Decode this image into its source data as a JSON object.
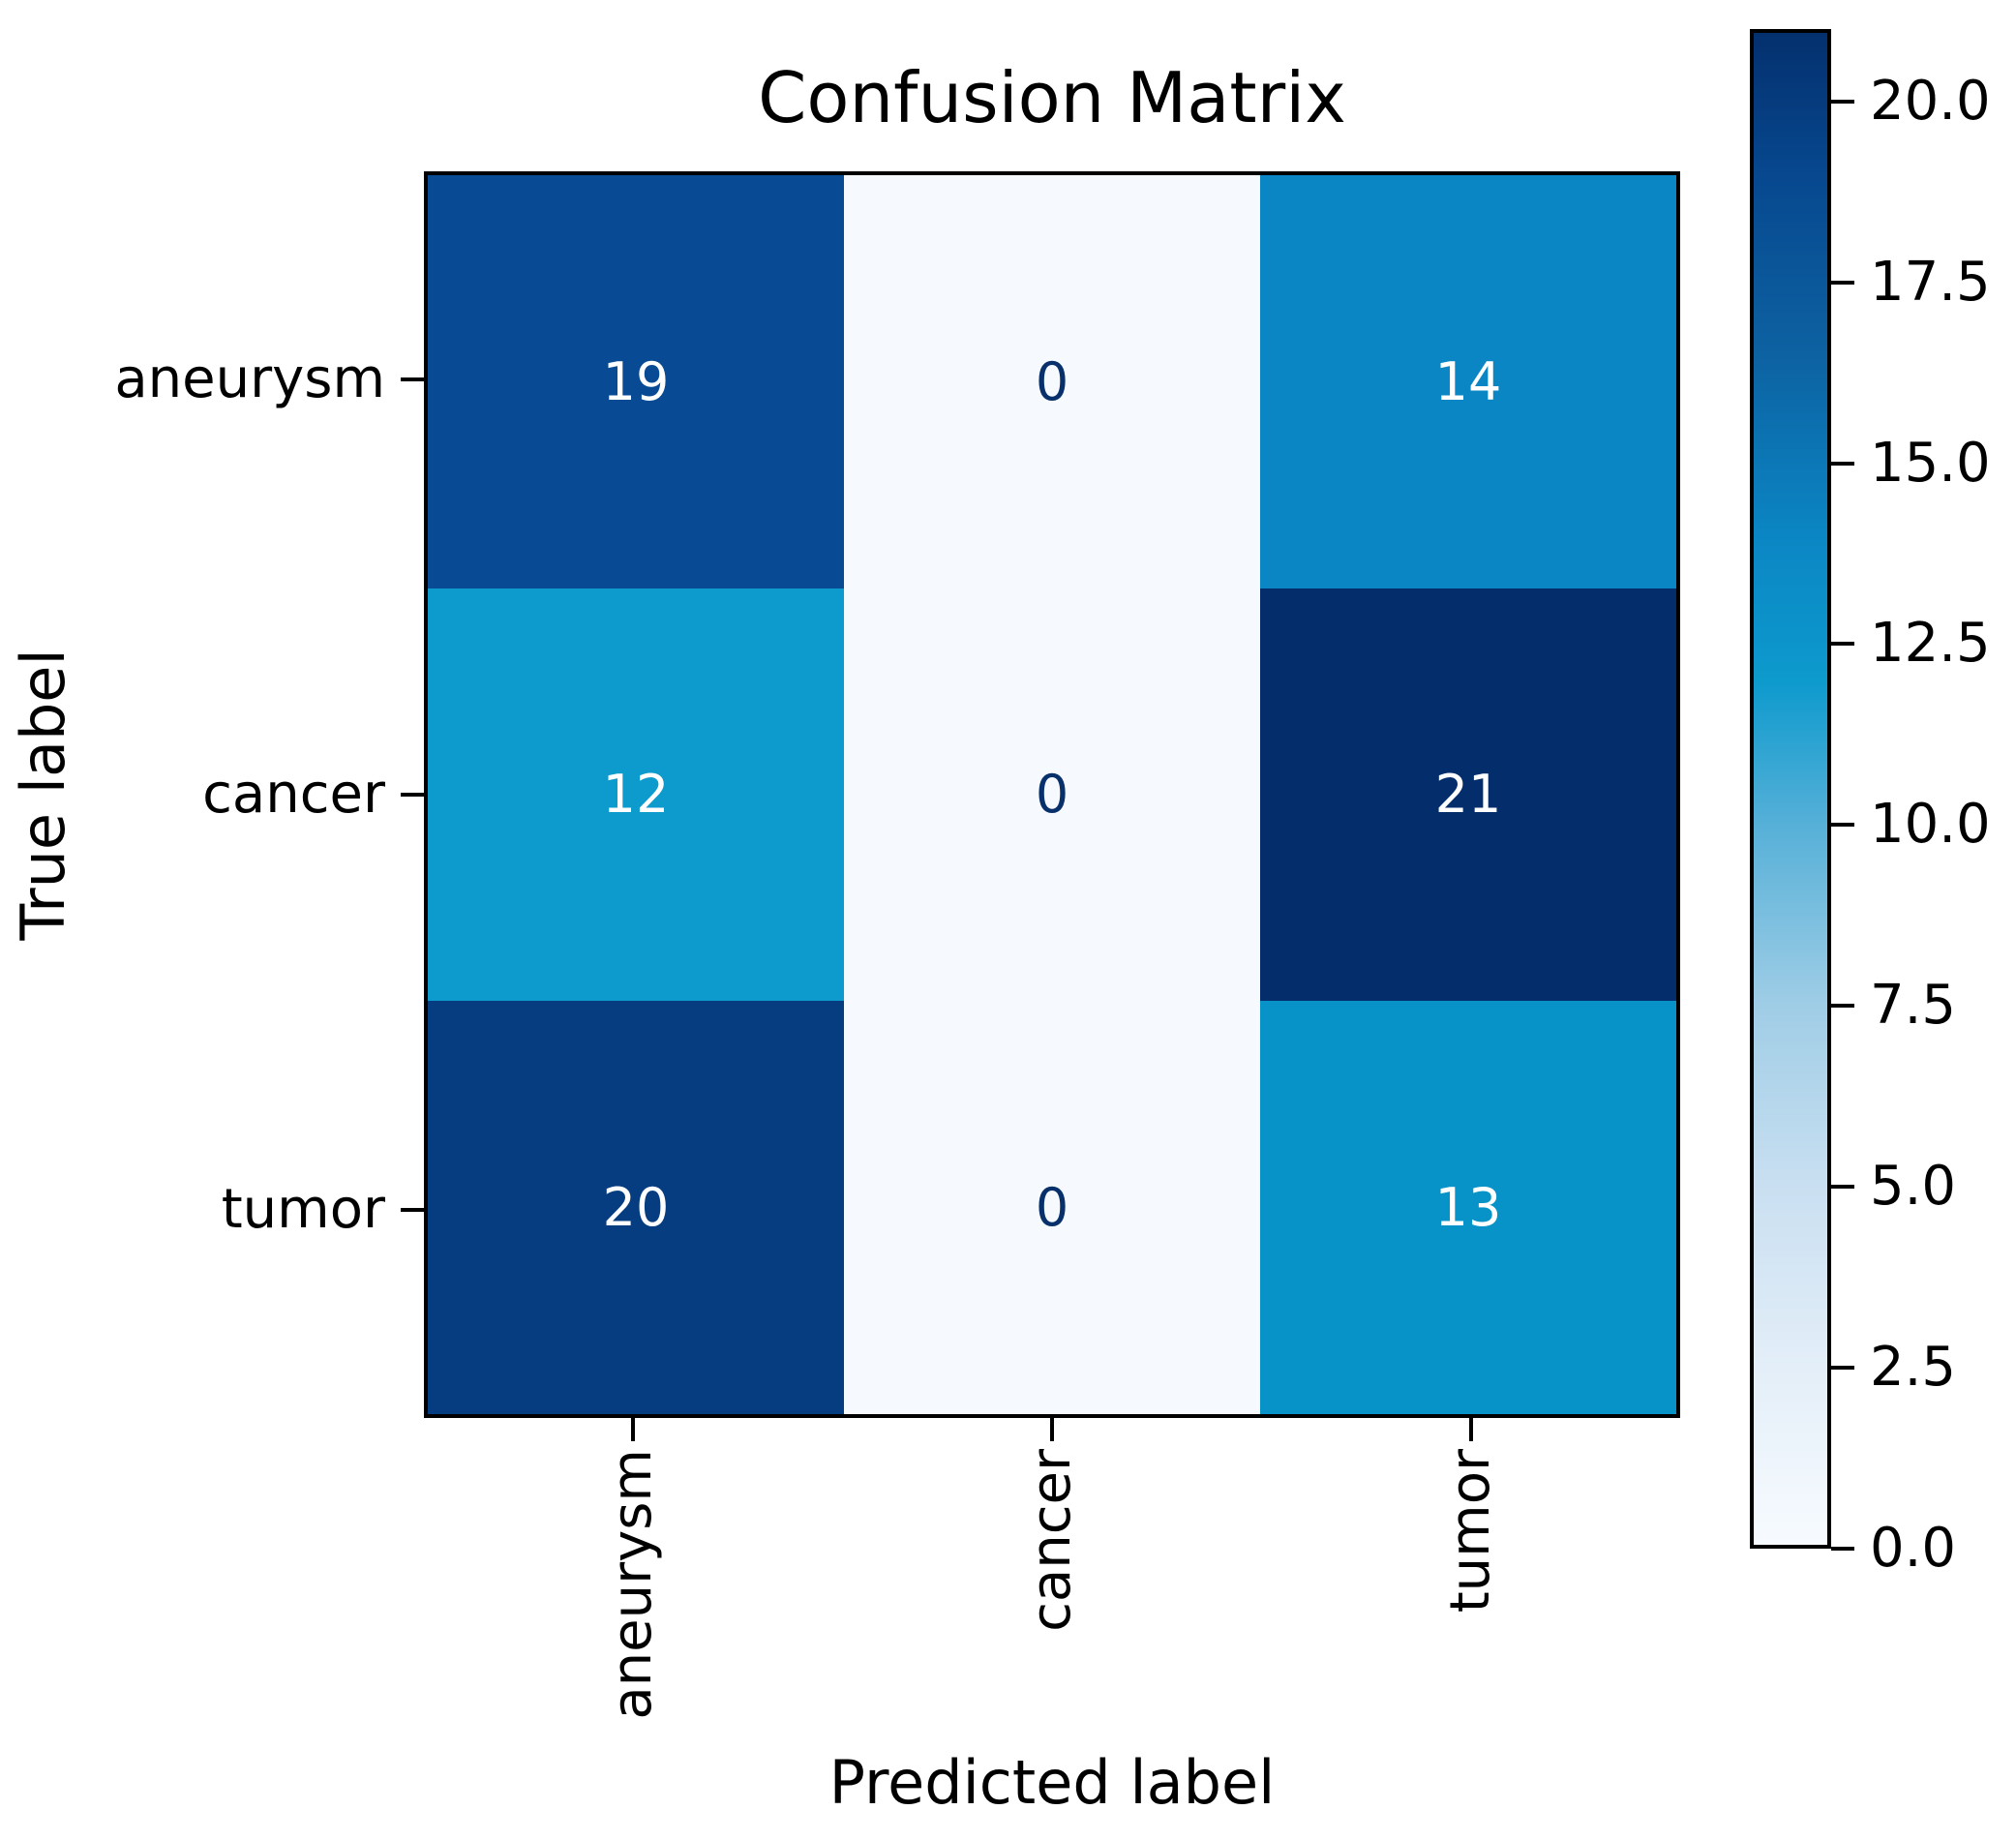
{
  "title": "Confusion Matrix",
  "chart_data": {
    "type": "heatmap",
    "title": "Confusion Matrix",
    "xlabel": "Predicted label",
    "ylabel": "True label",
    "x_tick_labels": [
      "aneurysm",
      "cancer",
      "tumor"
    ],
    "y_tick_labels": [
      "aneurysm",
      "cancer",
      "tumor"
    ],
    "matrix": [
      [
        19,
        0,
        14
      ],
      [
        12,
        0,
        21
      ],
      [
        20,
        0,
        13
      ]
    ],
    "colormap": "Blues",
    "vmin": 0,
    "vmax": 21,
    "colorbar_ticks": [
      {
        "value": 20.0,
        "label": "20.0"
      },
      {
        "value": 17.5,
        "label": "17.5"
      },
      {
        "value": 15.0,
        "label": "15.0"
      },
      {
        "value": 12.5,
        "label": "12.5"
      },
      {
        "value": 10.0,
        "label": "10.0"
      },
      {
        "value": 7.5,
        "label": "7.5"
      },
      {
        "value": 5.0,
        "label": "5.0"
      },
      {
        "value": 2.5,
        "label": "2.5"
      },
      {
        "value": 0.0,
        "label": "0.0"
      }
    ],
    "cell_colors": [
      [
        "#084a93",
        "#f6fafe",
        "#0b86c4"
      ],
      [
        "#0d9acd",
        "#f6fafe",
        "#032e6b"
      ],
      [
        "#053d80",
        "#f6fafe",
        "#0793c8"
      ]
    ],
    "cell_text_colors": [
      [
        "#ffffff",
        "#08306b",
        "#ffffff"
      ],
      [
        "#ffffff",
        "#08306b",
        "#ffffff"
      ],
      [
        "#ffffff",
        "#08306b",
        "#ffffff"
      ]
    ],
    "colorbar_gradient_bottom_to_top": [
      {
        "pos": 0.0,
        "color": "#f7fbff"
      },
      {
        "pos": 0.119,
        "color": "#e3eef8"
      },
      {
        "pos": 0.238,
        "color": "#c9dff1"
      },
      {
        "pos": 0.357,
        "color": "#9fcde6"
      },
      {
        "pos": 0.476,
        "color": "#56b0d8"
      },
      {
        "pos": 0.571,
        "color": "#0d9acd"
      },
      {
        "pos": 0.667,
        "color": "#0b86c4"
      },
      {
        "pos": 0.786,
        "color": "#0d62a2"
      },
      {
        "pos": 0.905,
        "color": "#07488f"
      },
      {
        "pos": 1.0,
        "color": "#04306e"
      }
    ],
    "axis_color": "#000000",
    "background_color": "#ffffff",
    "legend_position": "right-colorbar",
    "grid": false
  }
}
